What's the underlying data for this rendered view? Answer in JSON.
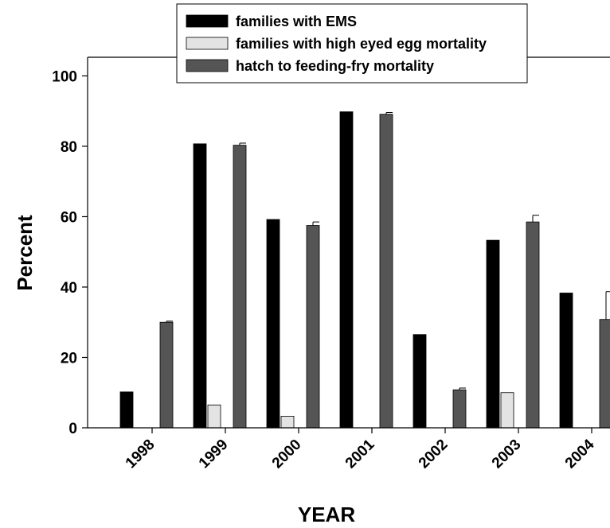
{
  "chart_data": {
    "type": "bar",
    "xlabel": "YEAR",
    "ylabel": "Percent",
    "ylim": [
      0,
      100
    ],
    "yticks": [
      0,
      20,
      40,
      60,
      80,
      100
    ],
    "categories": [
      "1998",
      "1999",
      "2000",
      "2001",
      "2002",
      "2003",
      "2004"
    ],
    "series": [
      {
        "name": "families with EMS",
        "color": "#000000",
        "values": [
          10.2,
          80.7,
          59.2,
          89.8,
          26.5,
          53.3,
          38.3
        ],
        "errors": [
          0,
          0,
          0,
          0,
          0,
          0,
          0
        ]
      },
      {
        "name": "families with high eyed egg mortality",
        "color": "#e3e3e3",
        "values": [
          0,
          6.5,
          3.3,
          0,
          0,
          10.0,
          0
        ],
        "errors": [
          0,
          0,
          0,
          0,
          0,
          0,
          0
        ]
      },
      {
        "name": "hatch to feeding-fry mortality",
        "color": "#555555",
        "values": [
          30.0,
          80.3,
          57.5,
          89.1,
          10.8,
          58.5,
          30.8
        ],
        "errors": [
          0.3,
          0.6,
          1.0,
          0.5,
          0.5,
          1.9,
          7.9
        ]
      }
    ],
    "legend_position": "top-center"
  }
}
